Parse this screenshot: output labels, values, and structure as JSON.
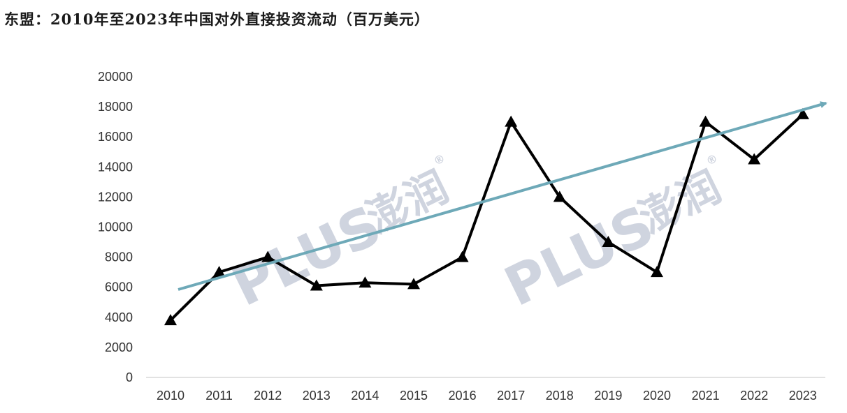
{
  "title": "东盟：2010年至2023年中国对外直接投资流动（百万美元）",
  "watermark": {
    "text": "PLUS",
    "brand": "澎润",
    "mark": "®",
    "color": "#a9b2c6",
    "accent": "#f2d39a"
  },
  "colors": {
    "series": "#000000",
    "trend": "#6ea9b8",
    "axis": "#d9d9d9"
  },
  "chart_data": {
    "type": "line",
    "title": "东盟：2010年至2023年中国对外直接投资流动（百万美元）",
    "xlabel": "",
    "ylabel": "",
    "categories": [
      "2010",
      "2011",
      "2012",
      "2013",
      "2014",
      "2015",
      "2016",
      "2017",
      "2018",
      "2019",
      "2020",
      "2021",
      "2022",
      "2023"
    ],
    "ylim": [
      0,
      20000
    ],
    "yticks": [
      "0",
      "2000",
      "4000",
      "6000",
      "8000",
      "10000",
      "12000",
      "14000",
      "16000",
      "18000",
      "20000"
    ],
    "series": [
      {
        "values": [
          3800,
          7000,
          8000,
          6100,
          6300,
          6200,
          8000,
          17000,
          12000,
          9000,
          7000,
          17000,
          14500,
          17500
        ],
        "marker": "triangle"
      }
    ],
    "trendline": {
      "start": 5700,
      "end": 17800
    },
    "grid": false,
    "legend": "none"
  }
}
